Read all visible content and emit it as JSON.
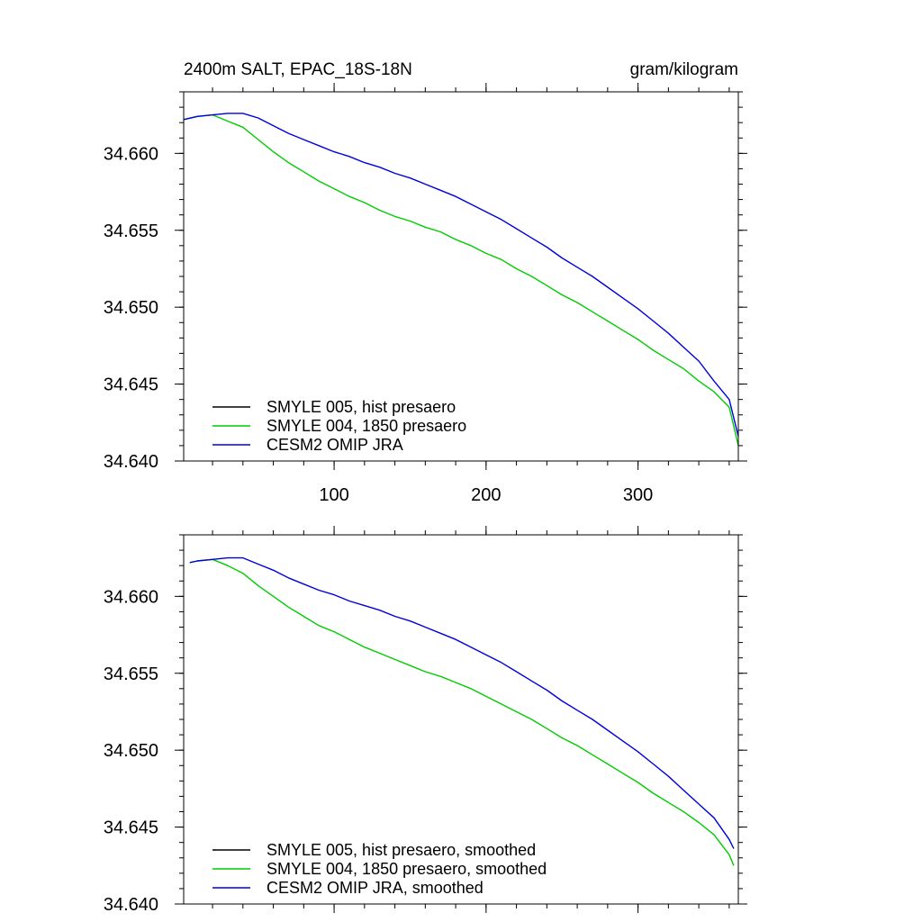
{
  "chart_data": [
    {
      "type": "line",
      "title": "2400m SALT, EPAC_18S-18N",
      "units": "gram/kilogram",
      "xlabel": "",
      "ylabel": "",
      "xlim": [
        1,
        366
      ],
      "ylim": [
        34.64,
        34.664
      ],
      "x_ticks": [
        100,
        200,
        300
      ],
      "x_tick_labels": [
        "100",
        "200",
        "300"
      ],
      "y_ticks": [
        34.64,
        34.645,
        34.65,
        34.655,
        34.66
      ],
      "y_tick_labels": [
        "34.640",
        "34.645",
        "34.650",
        "34.655",
        "34.660"
      ],
      "legend_position": "bottom-left",
      "grid": false,
      "series": [
        {
          "name": "SMYLE 005, hist presaero",
          "color": "#000000",
          "x": [],
          "values": []
        },
        {
          "name": "SMYLE 004, 1850 presaero",
          "color": "#00cc00",
          "x": [
            1,
            10,
            20,
            30,
            40,
            50,
            60,
            70,
            80,
            90,
            100,
            110,
            120,
            130,
            140,
            150,
            160,
            170,
            180,
            190,
            200,
            210,
            220,
            230,
            240,
            250,
            260,
            270,
            280,
            290,
            300,
            310,
            320,
            330,
            340,
            350,
            360,
            366
          ],
          "values": [
            34.6622,
            34.6624,
            34.6625,
            34.6621,
            34.6617,
            34.6609,
            34.6601,
            34.6594,
            34.6588,
            34.6582,
            34.6577,
            34.6572,
            34.6568,
            34.6563,
            34.6559,
            34.6556,
            34.6552,
            34.6549,
            34.6544,
            34.654,
            34.6535,
            34.6531,
            34.6525,
            34.652,
            34.6514,
            34.6508,
            34.6503,
            34.6497,
            34.6491,
            34.6485,
            34.6479,
            34.6472,
            34.6466,
            34.646,
            34.6452,
            34.6445,
            34.6435,
            34.641
          ]
        },
        {
          "name": "CESM2 OMIP JRA",
          "color": "#0000dd",
          "x": [
            1,
            10,
            20,
            30,
            40,
            50,
            60,
            70,
            80,
            90,
            100,
            110,
            120,
            130,
            140,
            150,
            160,
            170,
            180,
            190,
            200,
            210,
            220,
            230,
            240,
            250,
            260,
            270,
            280,
            290,
            300,
            310,
            320,
            330,
            340,
            350,
            360,
            366
          ],
          "values": [
            34.6622,
            34.6624,
            34.6625,
            34.6626,
            34.6626,
            34.6623,
            34.6618,
            34.6613,
            34.6609,
            34.6605,
            34.6601,
            34.6598,
            34.6594,
            34.6591,
            34.6587,
            34.6584,
            34.658,
            34.6576,
            34.6572,
            34.6567,
            34.6562,
            34.6557,
            34.6551,
            34.6545,
            34.6539,
            34.6532,
            34.6526,
            34.652,
            34.6513,
            34.6506,
            34.6499,
            34.6491,
            34.6483,
            34.6474,
            34.6465,
            34.6452,
            34.644,
            34.6416
          ]
        }
      ]
    },
    {
      "type": "line",
      "title": "",
      "units": "",
      "xlabel": "",
      "ylabel": "",
      "xlim": [
        1,
        366
      ],
      "ylim": [
        34.64,
        34.664
      ],
      "x_ticks": [
        100,
        200,
        300
      ],
      "x_tick_labels": [],
      "y_ticks": [
        34.64,
        34.645,
        34.65,
        34.655,
        34.66
      ],
      "y_tick_labels": [
        "34.640",
        "34.645",
        "34.650",
        "34.655",
        "34.660"
      ],
      "legend_position": "bottom-left",
      "grid": false,
      "series": [
        {
          "name": "SMYLE 005, hist presaero, smoothed",
          "color": "#000000",
          "x": [],
          "values": []
        },
        {
          "name": "SMYLE 004, 1850 presaero, smoothed",
          "color": "#00cc00",
          "x": [
            5,
            10,
            20,
            30,
            40,
            50,
            60,
            70,
            80,
            90,
            100,
            110,
            120,
            130,
            140,
            150,
            160,
            170,
            180,
            190,
            200,
            210,
            220,
            230,
            240,
            250,
            260,
            270,
            280,
            290,
            300,
            310,
            320,
            330,
            340,
            350,
            360,
            363
          ],
          "values": [
            34.6622,
            34.6623,
            34.6624,
            34.662,
            34.6615,
            34.6607,
            34.66,
            34.6593,
            34.6587,
            34.6581,
            34.6577,
            34.6572,
            34.6567,
            34.6563,
            34.6559,
            34.6555,
            34.6551,
            34.6548,
            34.6544,
            34.654,
            34.6535,
            34.653,
            34.6525,
            34.652,
            34.6514,
            34.6508,
            34.6503,
            34.6497,
            34.6491,
            34.6485,
            34.6479,
            34.6472,
            34.6466,
            34.646,
            34.6453,
            34.6445,
            34.6432,
            34.6425
          ]
        },
        {
          "name": "CESM2 OMIP JRA, smoothed",
          "color": "#0000dd",
          "x": [
            5,
            10,
            20,
            30,
            40,
            50,
            60,
            70,
            80,
            90,
            100,
            110,
            120,
            130,
            140,
            150,
            160,
            170,
            180,
            190,
            200,
            210,
            220,
            230,
            240,
            250,
            260,
            270,
            280,
            290,
            300,
            310,
            320,
            330,
            340,
            350,
            360,
            363
          ],
          "values": [
            34.6622,
            34.6623,
            34.6624,
            34.6625,
            34.6625,
            34.6621,
            34.6617,
            34.6612,
            34.6608,
            34.6604,
            34.6601,
            34.6597,
            34.6594,
            34.6591,
            34.6587,
            34.6584,
            34.658,
            34.6576,
            34.6572,
            34.6567,
            34.6562,
            34.6557,
            34.6551,
            34.6545,
            34.6539,
            34.6532,
            34.6526,
            34.652,
            34.6513,
            34.6506,
            34.6499,
            34.6491,
            34.6483,
            34.6474,
            34.6465,
            34.6456,
            34.6442,
            34.6436
          ]
        }
      ]
    }
  ]
}
